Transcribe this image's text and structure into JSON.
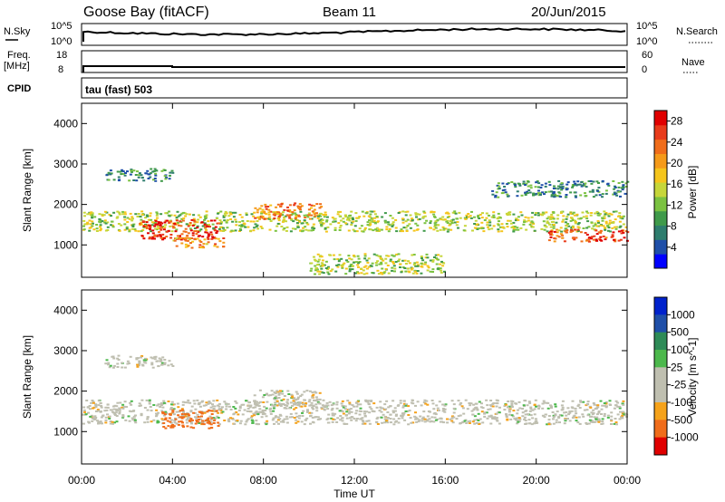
{
  "header": {
    "station": "Goose Bay (fitACF)",
    "beam": "Beam 11",
    "date": "20/Jun/2015"
  },
  "noise_panel": {
    "left_label": "N.Sky",
    "right_label": "N.Search",
    "left_ticks": [
      "10^5",
      "10^0"
    ],
    "right_ticks": [
      "10^5",
      "10^0"
    ]
  },
  "freq_panel": {
    "left_label_1": "Freq.",
    "left_label_2": "[MHz]",
    "right_label": "Nave",
    "left_ticks": [
      "18",
      "8"
    ],
    "right_ticks": [
      "60",
      "0"
    ]
  },
  "cpid_panel": {
    "label": "CPID",
    "value": "tau (fast) 503"
  },
  "colors": {
    "power_scale": [
      "#0000ff",
      "#1f4fa8",
      "#2e7d6e",
      "#3f9a4a",
      "#7bc241",
      "#c6d63a",
      "#f5c51c",
      "#f59a1a",
      "#f06d1b",
      "#e83b1b",
      "#e00000"
    ],
    "velocity_scale": [
      "#0022cc",
      "#1f4fa8",
      "#2e8b57",
      "#4cb84c",
      "#bfbfb0",
      "#bfbfb0",
      "#f5a21a",
      "#f06d1b",
      "#e00000"
    ]
  },
  "chart_data": [
    {
      "type": "heatmap",
      "title": "",
      "xlabel": "Time UT",
      "ylabel": "Slant Range [km]",
      "x_ticks": [
        "00:00",
        "04:00",
        "08:00",
        "12:00",
        "16:00",
        "20:00",
        "00:00"
      ],
      "y_ticks": [
        "1000",
        "2000",
        "3000",
        "4000"
      ],
      "xlim": [
        0,
        24
      ],
      "ylim": [
        200,
        4500
      ],
      "colorbar_label": "Power [dB]",
      "colorbar_ticks": [
        "4",
        "8",
        "12",
        "16",
        "20",
        "24",
        "28"
      ],
      "colorbar_range": [
        0,
        30
      ],
      "features": [
        {
          "t": [
            0,
            24
          ],
          "range": [
            1350,
            1850
          ],
          "value": 14
        },
        {
          "t": [
            2.5,
            6
          ],
          "range": [
            1150,
            1650
          ],
          "value": 27
        },
        {
          "t": [
            4,
            6.2
          ],
          "range": [
            950,
            1200
          ],
          "value": 20
        },
        {
          "t": [
            7.5,
            10.5
          ],
          "range": [
            1650,
            2050
          ],
          "value": 22
        },
        {
          "t": [
            20.5,
            24
          ],
          "range": [
            1100,
            1400
          ],
          "value": 25
        },
        {
          "t": [
            1,
            4
          ],
          "range": [
            2600,
            2900
          ],
          "value": 8
        },
        {
          "t": [
            10,
            16
          ],
          "range": [
            300,
            800
          ],
          "value": 14
        },
        {
          "t": [
            18,
            24
          ],
          "range": [
            2200,
            2600
          ],
          "value": 8
        }
      ]
    },
    {
      "type": "heatmap",
      "title": "",
      "xlabel": "Time UT",
      "ylabel": "Slant Range [km]",
      "x_ticks": [
        "00:00",
        "04:00",
        "08:00",
        "12:00",
        "16:00",
        "20:00",
        "00:00"
      ],
      "y_ticks": [
        "1000",
        "2000",
        "3000",
        "4000"
      ],
      "xlim": [
        0,
        24
      ],
      "ylim": [
        200,
        4500
      ],
      "colorbar_label": "Velocity [m s^-1]",
      "colorbar_ticks": [
        "1000",
        "500",
        "100",
        "25",
        "-25",
        "-100",
        "-500",
        "-1000"
      ],
      "features": [
        {
          "t": [
            0,
            24
          ],
          "range": [
            1200,
            1800
          ],
          "value": 0
        },
        {
          "t": [
            3.5,
            6
          ],
          "range": [
            1100,
            1550
          ],
          "value": -300
        },
        {
          "t": [
            7.5,
            10.5
          ],
          "range": [
            1650,
            2050
          ],
          "value": 0
        },
        {
          "t": [
            1,
            4
          ],
          "range": [
            2600,
            2900
          ],
          "value": 0
        }
      ]
    }
  ]
}
